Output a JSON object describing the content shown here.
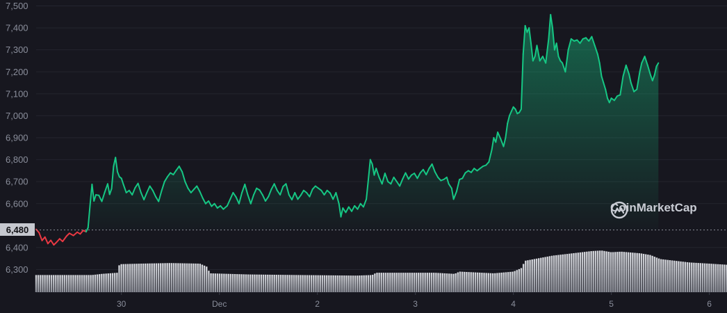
{
  "chart_data": {
    "type": "area",
    "y_ticks": [
      "7,500",
      "7,400",
      "7,300",
      "7,200",
      "7,100",
      "7,000",
      "6,900",
      "6,800",
      "6,700",
      "6,600",
      "6,400",
      "6,300"
    ],
    "ylim": [
      6215,
      7500
    ],
    "x_ticks": [
      {
        "label": "30",
        "x": 1
      },
      {
        "label": "Dec",
        "x": 2
      },
      {
        "label": "2",
        "x": 3
      },
      {
        "label": "3",
        "x": 4
      },
      {
        "label": "4",
        "x": 5
      },
      {
        "label": "5",
        "x": 6
      },
      {
        "label": "6",
        "x": 7
      }
    ],
    "xlim": [
      0.13,
      7.18
    ],
    "reference_price": 6480,
    "reference_label": "6,480",
    "colors": {
      "up": "#16c784",
      "down": "#ea3943",
      "volume": "#d4d6dc"
    },
    "series": [
      {
        "values": [
          [
            0.13,
            6483
          ],
          [
            0.16,
            6468
          ],
          [
            0.19,
            6432
          ],
          [
            0.22,
            6448
          ],
          [
            0.25,
            6418
          ],
          [
            0.28,
            6433
          ],
          [
            0.31,
            6412
          ],
          [
            0.34,
            6425
          ],
          [
            0.37,
            6440
          ],
          [
            0.4,
            6428
          ],
          [
            0.44,
            6452
          ],
          [
            0.47,
            6465
          ],
          [
            0.51,
            6455
          ],
          [
            0.55,
            6470
          ],
          [
            0.58,
            6462
          ],
          [
            0.61,
            6478
          ],
          [
            0.64,
            6472
          ],
          [
            0.66,
            6490
          ],
          [
            0.68,
            6590
          ],
          [
            0.7,
            6688
          ],
          [
            0.72,
            6612
          ],
          [
            0.74,
            6640
          ],
          [
            0.77,
            6638
          ],
          [
            0.8,
            6610
          ],
          [
            0.83,
            6652
          ],
          [
            0.86,
            6690
          ],
          [
            0.88,
            6642
          ],
          [
            0.9,
            6668
          ],
          [
            0.92,
            6770
          ],
          [
            0.94,
            6810
          ],
          [
            0.96,
            6745
          ],
          [
            0.98,
            6722
          ],
          [
            1.0,
            6715
          ],
          [
            1.02,
            6688
          ],
          [
            1.05,
            6650
          ],
          [
            1.08,
            6660
          ],
          [
            1.11,
            6640
          ],
          [
            1.14,
            6672
          ],
          [
            1.17,
            6692
          ],
          [
            1.2,
            6650
          ],
          [
            1.23,
            6618
          ],
          [
            1.26,
            6650
          ],
          [
            1.29,
            6680
          ],
          [
            1.32,
            6660
          ],
          [
            1.35,
            6632
          ],
          [
            1.38,
            6610
          ],
          [
            1.41,
            6658
          ],
          [
            1.44,
            6700
          ],
          [
            1.47,
            6722
          ],
          [
            1.5,
            6740
          ],
          [
            1.53,
            6732
          ],
          [
            1.56,
            6752
          ],
          [
            1.59,
            6770
          ],
          [
            1.62,
            6745
          ],
          [
            1.65,
            6700
          ],
          [
            1.68,
            6670
          ],
          [
            1.71,
            6650
          ],
          [
            1.74,
            6665
          ],
          [
            1.77,
            6680
          ],
          [
            1.8,
            6655
          ],
          [
            1.83,
            6625
          ],
          [
            1.86,
            6600
          ],
          [
            1.89,
            6612
          ],
          [
            1.92,
            6588
          ],
          [
            1.95,
            6600
          ],
          [
            1.98,
            6580
          ],
          [
            2.01,
            6590
          ],
          [
            2.04,
            6575
          ],
          [
            2.08,
            6590
          ],
          [
            2.11,
            6620
          ],
          [
            2.14,
            6650
          ],
          [
            2.17,
            6630
          ],
          [
            2.2,
            6600
          ],
          [
            2.23,
            6650
          ],
          [
            2.26,
            6688
          ],
          [
            2.29,
            6640
          ],
          [
            2.32,
            6600
          ],
          [
            2.35,
            6640
          ],
          [
            2.38,
            6670
          ],
          [
            2.41,
            6662
          ],
          [
            2.44,
            6640
          ],
          [
            2.47,
            6612
          ],
          [
            2.5,
            6632
          ],
          [
            2.53,
            6665
          ],
          [
            2.56,
            6690
          ],
          [
            2.59,
            6660
          ],
          [
            2.62,
            6640
          ],
          [
            2.65,
            6678
          ],
          [
            2.68,
            6690
          ],
          [
            2.71,
            6640
          ],
          [
            2.74,
            6618
          ],
          [
            2.77,
            6650
          ],
          [
            2.8,
            6620
          ],
          [
            2.83,
            6638
          ],
          [
            2.86,
            6660
          ],
          [
            2.89,
            6650
          ],
          [
            2.92,
            6632
          ],
          [
            2.95,
            6665
          ],
          [
            2.98,
            6680
          ],
          [
            3.01,
            6670
          ],
          [
            3.04,
            6660
          ],
          [
            3.07,
            6640
          ],
          [
            3.1,
            6660
          ],
          [
            3.13,
            6648
          ],
          [
            3.16,
            6620
          ],
          [
            3.19,
            6650
          ],
          [
            3.22,
            6600
          ],
          [
            3.24,
            6540
          ],
          [
            3.26,
            6580
          ],
          [
            3.29,
            6560
          ],
          [
            3.32,
            6585
          ],
          [
            3.35,
            6565
          ],
          [
            3.38,
            6590
          ],
          [
            3.41,
            6575
          ],
          [
            3.44,
            6600
          ],
          [
            3.47,
            6585
          ],
          [
            3.5,
            6620
          ],
          [
            3.52,
            6710
          ],
          [
            3.54,
            6800
          ],
          [
            3.56,
            6780
          ],
          [
            3.58,
            6730
          ],
          [
            3.6,
            6760
          ],
          [
            3.63,
            6720
          ],
          [
            3.66,
            6690
          ],
          [
            3.69,
            6738
          ],
          [
            3.72,
            6700
          ],
          [
            3.75,
            6690
          ],
          [
            3.78,
            6720
          ],
          [
            3.81,
            6700
          ],
          [
            3.84,
            6680
          ],
          [
            3.87,
            6712
          ],
          [
            3.9,
            6740
          ],
          [
            3.93,
            6712
          ],
          [
            3.96,
            6730
          ],
          [
            3.99,
            6738
          ],
          [
            4.02,
            6715
          ],
          [
            4.05,
            6740
          ],
          [
            4.08,
            6755
          ],
          [
            4.11,
            6732
          ],
          [
            4.14,
            6760
          ],
          [
            4.17,
            6780
          ],
          [
            4.2,
            6745
          ],
          [
            4.23,
            6720
          ],
          [
            4.26,
            6705
          ],
          [
            4.29,
            6710
          ],
          [
            4.32,
            6720
          ],
          [
            4.34,
            6690
          ],
          [
            4.37,
            6670
          ],
          [
            4.39,
            6620
          ],
          [
            4.42,
            6655
          ],
          [
            4.45,
            6710
          ],
          [
            4.48,
            6715
          ],
          [
            4.51,
            6740
          ],
          [
            4.54,
            6750
          ],
          [
            4.57,
            6742
          ],
          [
            4.6,
            6760
          ],
          [
            4.63,
            6750
          ],
          [
            4.66,
            6760
          ],
          [
            4.69,
            6770
          ],
          [
            4.72,
            6775
          ],
          [
            4.75,
            6790
          ],
          [
            4.78,
            6845
          ],
          [
            4.8,
            6900
          ],
          [
            4.82,
            6880
          ],
          [
            4.84,
            6925
          ],
          [
            4.87,
            6895
          ],
          [
            4.9,
            6860
          ],
          [
            4.92,
            6900
          ],
          [
            4.94,
            6965
          ],
          [
            4.96,
            7000
          ],
          [
            4.98,
            7020
          ],
          [
            5.0,
            7040
          ],
          [
            5.02,
            7030
          ],
          [
            5.04,
            7010
          ],
          [
            5.06,
            7015
          ],
          [
            5.08,
            7030
          ],
          [
            5.1,
            7280
          ],
          [
            5.12,
            7410
          ],
          [
            5.14,
            7380
          ],
          [
            5.16,
            7400
          ],
          [
            5.18,
            7330
          ],
          [
            5.2,
            7250
          ],
          [
            5.22,
            7270
          ],
          [
            5.24,
            7320
          ],
          [
            5.27,
            7250
          ],
          [
            5.3,
            7270
          ],
          [
            5.33,
            7240
          ],
          [
            5.36,
            7350
          ],
          [
            5.38,
            7460
          ],
          [
            5.4,
            7400
          ],
          [
            5.42,
            7300
          ],
          [
            5.44,
            7330
          ],
          [
            5.46,
            7270
          ],
          [
            5.48,
            7250
          ],
          [
            5.5,
            7240
          ],
          [
            5.53,
            7200
          ],
          [
            5.56,
            7300
          ],
          [
            5.59,
            7350
          ],
          [
            5.62,
            7340
          ],
          [
            5.65,
            7345
          ],
          [
            5.68,
            7330
          ],
          [
            5.71,
            7350
          ],
          [
            5.74,
            7355
          ],
          [
            5.77,
            7340
          ],
          [
            5.8,
            7360
          ],
          [
            5.83,
            7320
          ],
          [
            5.86,
            7280
          ],
          [
            5.88,
            7240
          ],
          [
            5.9,
            7180
          ],
          [
            5.92,
            7150
          ],
          [
            5.94,
            7120
          ],
          [
            5.96,
            7080
          ],
          [
            5.98,
            7060
          ],
          [
            6.0,
            7080
          ],
          [
            6.03,
            7070
          ],
          [
            6.06,
            7090
          ],
          [
            6.09,
            7095
          ],
          [
            6.12,
            7180
          ],
          [
            6.15,
            7230
          ],
          [
            6.18,
            7190
          ],
          [
            6.2,
            7150
          ],
          [
            6.23,
            7110
          ],
          [
            6.26,
            7120
          ],
          [
            6.29,
            7200
          ],
          [
            6.31,
            7240
          ],
          [
            6.34,
            7270
          ],
          [
            6.37,
            7230
          ],
          [
            6.4,
            7185
          ],
          [
            6.42,
            7160
          ],
          [
            6.44,
            7185
          ],
          [
            6.46,
            7225
          ],
          [
            6.48,
            7240
          ]
        ]
      }
    ],
    "volume": {
      "bar_step": 0.0223,
      "profile": [
        [
          0.13,
          0.3
        ],
        [
          0.7,
          0.3
        ],
        [
          0.8,
          0.32
        ],
        [
          0.96,
          0.34
        ],
        [
          0.98,
          0.49
        ],
        [
          1.2,
          0.5
        ],
        [
          1.5,
          0.51
        ],
        [
          1.8,
          0.5
        ],
        [
          1.88,
          0.44
        ],
        [
          1.9,
          0.33
        ],
        [
          2.3,
          0.31
        ],
        [
          2.8,
          0.3
        ],
        [
          3.4,
          0.29
        ],
        [
          3.56,
          0.3
        ],
        [
          3.6,
          0.34
        ],
        [
          4.2,
          0.34
        ],
        [
          4.4,
          0.32
        ],
        [
          4.45,
          0.36
        ],
        [
          4.8,
          0.33
        ],
        [
          5.0,
          0.36
        ],
        [
          5.08,
          0.42
        ],
        [
          5.12,
          0.55
        ],
        [
          5.4,
          0.64
        ],
        [
          5.6,
          0.68
        ],
        [
          5.8,
          0.72
        ],
        [
          5.9,
          0.73
        ],
        [
          6.0,
          0.7
        ],
        [
          6.1,
          0.71
        ],
        [
          6.3,
          0.68
        ],
        [
          6.4,
          0.65
        ],
        [
          6.5,
          0.58
        ],
        [
          6.6,
          0.56
        ],
        [
          6.8,
          0.52
        ],
        [
          7.0,
          0.5
        ],
        [
          7.18,
          0.48
        ]
      ]
    }
  },
  "brand": {
    "name": "CoinMarketCap"
  }
}
